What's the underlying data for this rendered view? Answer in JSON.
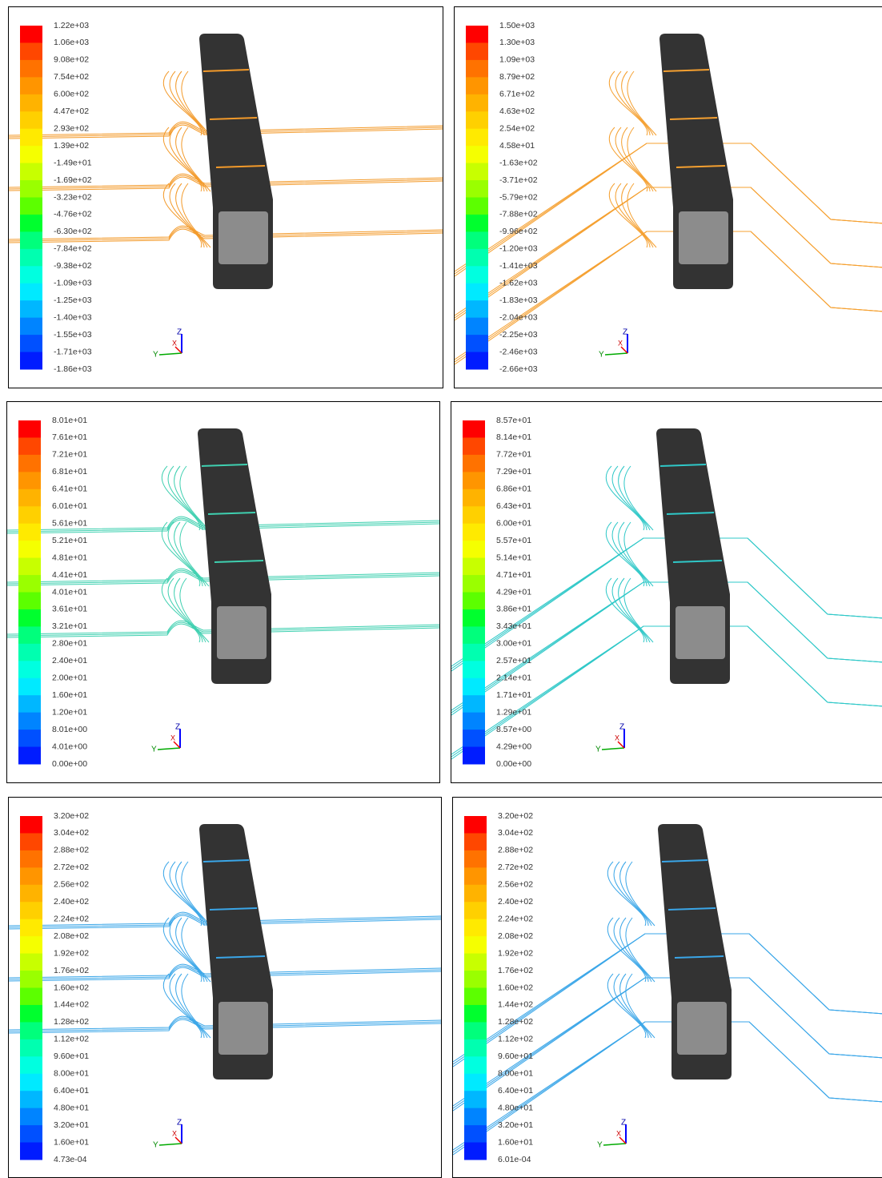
{
  "colormap": [
    "#ff0000",
    "#ff4700",
    "#ff7200",
    "#ff9500",
    "#ffb300",
    "#ffd000",
    "#ffea00",
    "#f5ff00",
    "#c8ff00",
    "#9aff00",
    "#5cff00",
    "#00ff2e",
    "#00ff7c",
    "#00ffb0",
    "#00ffe0",
    "#00eaff",
    "#00b7ff",
    "#0084ff",
    "#0050ff",
    "#001cff"
  ],
  "axis_labels": {
    "x": "X",
    "y": "Y",
    "z": "Z"
  },
  "panels": [
    {
      "streamline_color": "#f39a2a",
      "colorbar": {
        "labels": [
          "1.22e+03",
          "1.06e+03",
          "9.08e+02",
          "7.54e+02",
          "6.00e+02",
          "4.47e+02",
          "2.93e+02",
          "1.39e+02",
          "-1.49e+01",
          "-1.69e+02",
          "-3.23e+02",
          "-4.76e+02",
          "-6.30e+02",
          "-7.84e+02",
          "-9.38e+02",
          "-1.09e+03",
          "-1.25e+03",
          "-1.40e+03",
          "-1.55e+03",
          "-1.71e+03",
          "-1.86e+03"
        ]
      }
    },
    {
      "streamline_color": "#f5a030",
      "colorbar": {
        "labels": [
          "1.50e+03",
          "1.30e+03",
          "1.09e+03",
          "8.79e+02",
          "6.71e+02",
          "4.63e+02",
          "2.54e+02",
          "4.58e+01",
          "-1.63e+02",
          "-3.71e+02",
          "-5.79e+02",
          "-7.88e+02",
          "-9.96e+02",
          "-1.20e+03",
          "-1.41e+03",
          "-1.62e+03",
          "-1.83e+03",
          "-2.04e+03",
          "-2.25e+03",
          "-2.46e+03",
          "-2.66e+03"
        ]
      }
    },
    {
      "streamline_color": "#3fd0b0",
      "colorbar": {
        "labels": [
          "8.01e+01",
          "7.61e+01",
          "7.21e+01",
          "6.81e+01",
          "6.41e+01",
          "6.01e+01",
          "5.61e+01",
          "5.21e+01",
          "4.81e+01",
          "4.41e+01",
          "4.01e+01",
          "3.61e+01",
          "3.21e+01",
          "2.80e+01",
          "2.40e+01",
          "2.00e+01",
          "1.60e+01",
          "1.20e+01",
          "8.01e+00",
          "4.01e+00",
          "0.00e+00"
        ]
      }
    },
    {
      "streamline_color": "#2fc8c8",
      "colorbar": {
        "labels": [
          "8.57e+01",
          "8.14e+01",
          "7.72e+01",
          "7.29e+01",
          "6.86e+01",
          "6.43e+01",
          "6.00e+01",
          "5.57e+01",
          "5.14e+01",
          "4.71e+01",
          "4.29e+01",
          "3.86e+01",
          "3.43e+01",
          "3.00e+01",
          "2.57e+01",
          "2.14e+01",
          "1.71e+01",
          "1.29e+01",
          "8.57e+00",
          "4.29e+00",
          "0.00e+00"
        ]
      }
    },
    {
      "streamline_color": "#3aa6e8",
      "colorbar": {
        "labels": [
          "3.20e+02",
          "3.04e+02",
          "2.88e+02",
          "2.72e+02",
          "2.56e+02",
          "2.40e+02",
          "2.24e+02",
          "2.08e+02",
          "1.92e+02",
          "1.76e+02",
          "1.60e+02",
          "1.44e+02",
          "1.28e+02",
          "1.12e+02",
          "9.60e+01",
          "8.00e+01",
          "6.40e+01",
          "4.80e+01",
          "3.20e+01",
          "1.60e+01",
          "4.73e-04"
        ]
      }
    },
    {
      "streamline_color": "#3aa6e8",
      "colorbar": {
        "labels": [
          "3.20e+02",
          "3.04e+02",
          "2.88e+02",
          "2.72e+02",
          "2.56e+02",
          "2.40e+02",
          "2.24e+02",
          "2.08e+02",
          "1.92e+02",
          "1.76e+02",
          "1.60e+02",
          "1.44e+02",
          "1.28e+02",
          "1.12e+02",
          "9.60e+01",
          "8.00e+01",
          "6.40e+01",
          "4.80e+01",
          "3.20e+01",
          "1.60e+01",
          "6.01e-04"
        ]
      }
    }
  ]
}
